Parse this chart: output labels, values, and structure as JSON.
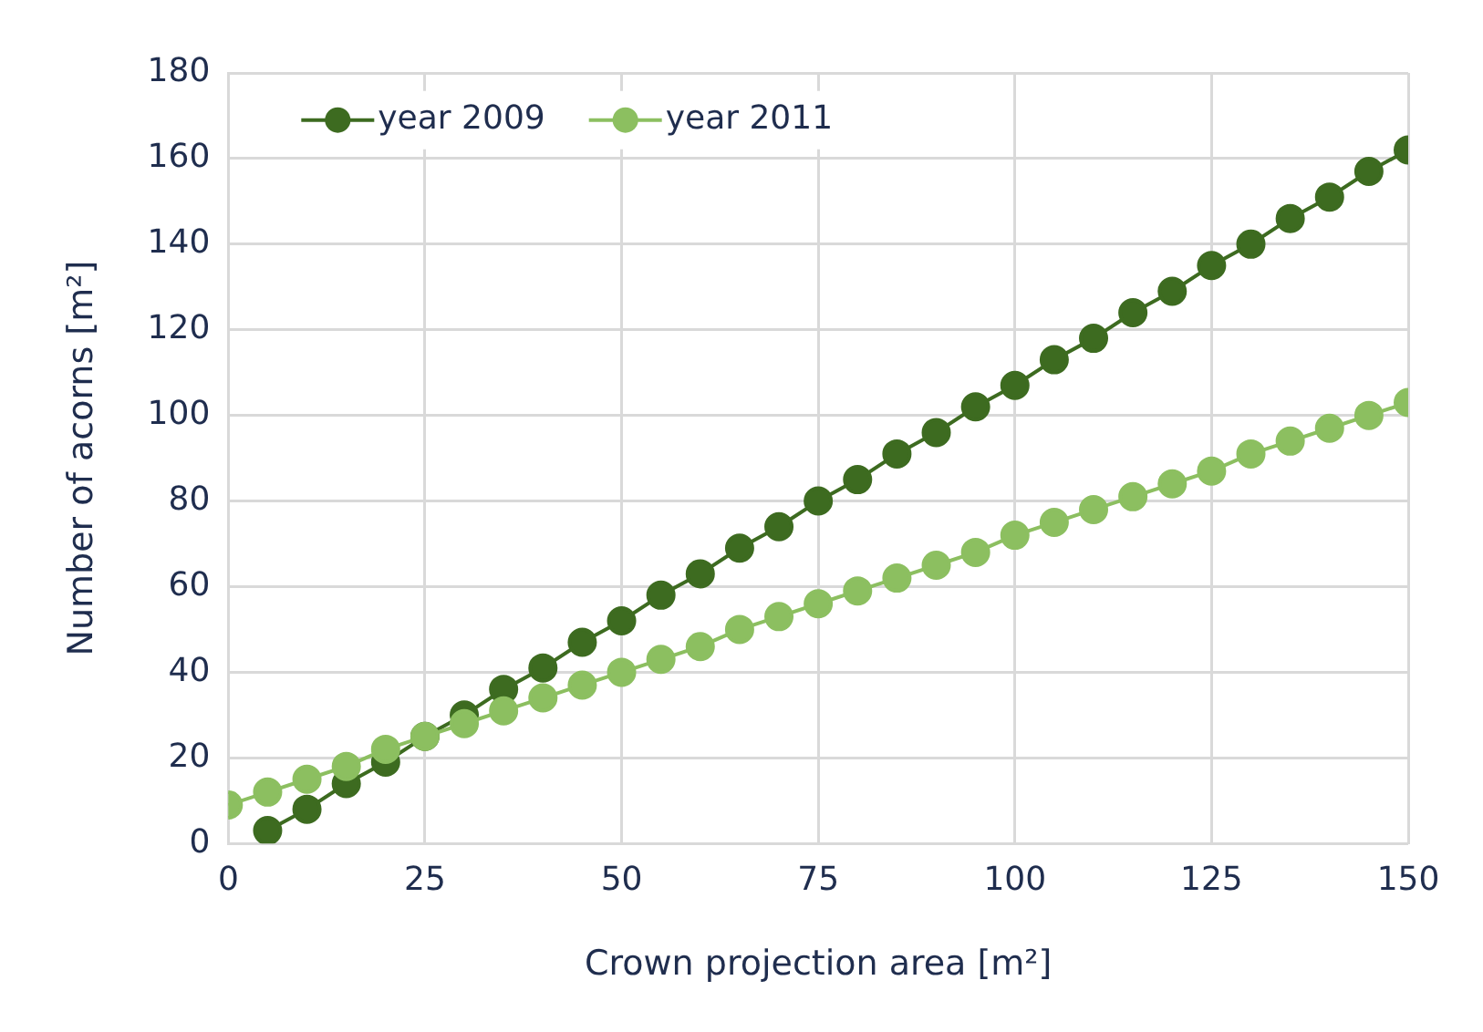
{
  "chart_data": {
    "type": "line",
    "xlabel": "Crown projection area [m²]",
    "ylabel": "Number of acorns [m²]",
    "xlim": [
      0,
      150
    ],
    "xticks": [
      0,
      25,
      50,
      75,
      100,
      125,
      150
    ],
    "ylim": [
      0,
      180
    ],
    "yticks": [
      0,
      20,
      40,
      60,
      80,
      100,
      120,
      140,
      160,
      180
    ],
    "grid": true,
    "legend": "top left",
    "marker": "circle",
    "line_style": "solid",
    "series": [
      {
        "name": "year 2009",
        "color": "#3d6b20",
        "x": [
          5,
          10,
          15,
          20,
          25,
          30,
          35,
          40,
          45,
          50,
          55,
          60,
          65,
          70,
          75,
          80,
          85,
          90,
          95,
          100,
          105,
          110,
          115,
          120,
          125,
          130,
          135,
          140,
          145,
          150
        ],
        "values": [
          3,
          8,
          14,
          19,
          25,
          30,
          36,
          41,
          47,
          52,
          58,
          63,
          69,
          74,
          80,
          85,
          91,
          96,
          102,
          107,
          113,
          118,
          124,
          129,
          135,
          140,
          146,
          151,
          157,
          162
        ]
      },
      {
        "name": "year 2011",
        "color": "#8cbf60",
        "x": [
          0,
          5,
          10,
          15,
          20,
          25,
          30,
          35,
          40,
          45,
          50,
          55,
          60,
          65,
          70,
          75,
          80,
          85,
          90,
          95,
          100,
          105,
          110,
          115,
          120,
          125,
          130,
          135,
          140,
          145,
          150
        ],
        "values": [
          9,
          12,
          15,
          18,
          22,
          25,
          28,
          31,
          34,
          37,
          40,
          43,
          46,
          50,
          53,
          56,
          59,
          62,
          65,
          68,
          72,
          75,
          78,
          81,
          84,
          87,
          91,
          94,
          97,
          100,
          103
        ]
      }
    ]
  }
}
